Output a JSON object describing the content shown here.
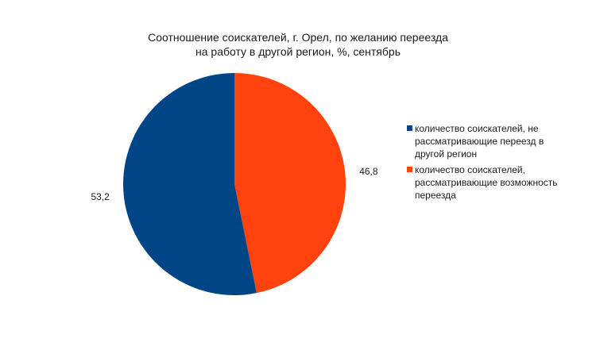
{
  "chart_data": {
    "type": "pie",
    "title": "Соотношение соискателей, г. Орел, по желанию переезда\nна работу в другой регион, %, сентябрь",
    "title_lines": [
      "Соотношение соискателей, г. Орел, по желанию переезда",
      "на работу в другой регион, %, сентябрь"
    ],
    "categories": [
      "количество соискателей, не рассматривающие переезд в другой регион",
      "количество соискателей, рассматривающие возможность переезда"
    ],
    "values": [
      53.2,
      46.8
    ],
    "value_labels": [
      "53,2",
      "46,8"
    ],
    "colors": [
      "#004586",
      "#ff420e"
    ],
    "legend_position": "right",
    "start": "top, clockwise; second slice first"
  }
}
